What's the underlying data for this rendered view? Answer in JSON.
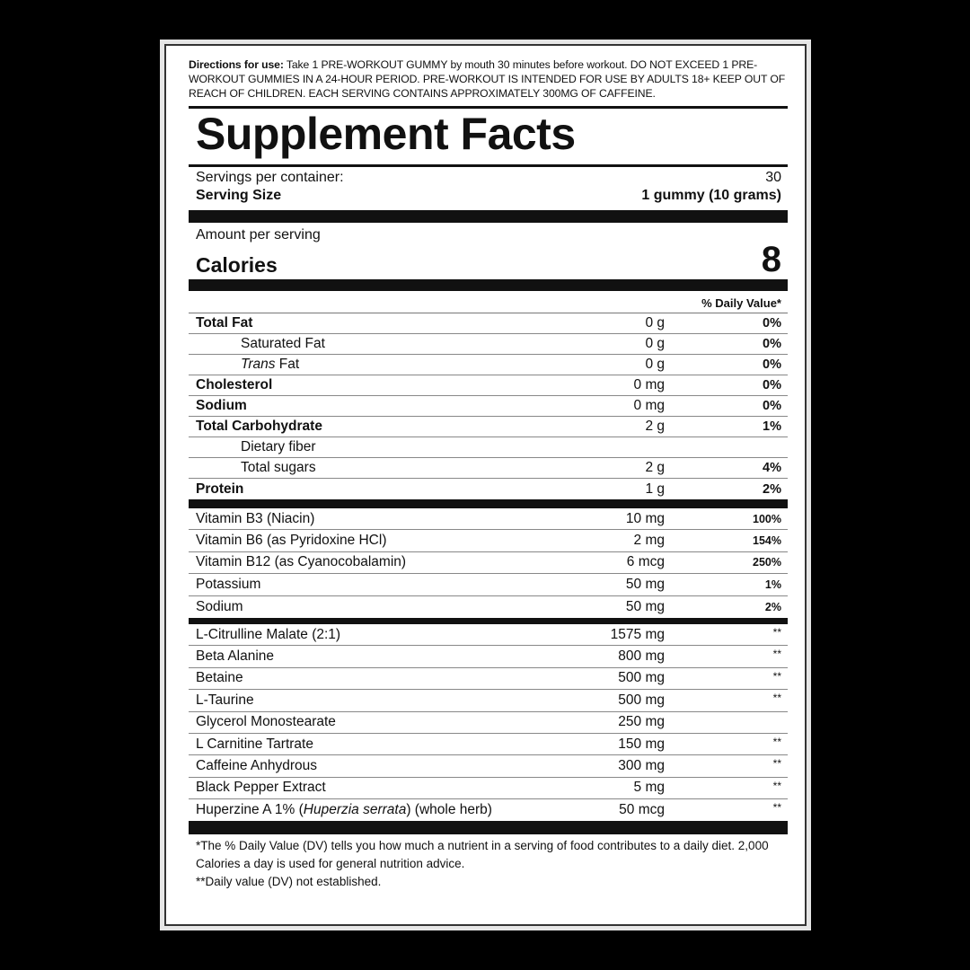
{
  "directions": {
    "label": "Directions for use:",
    "text": " Take 1 PRE-WORKOUT GUMMY by mouth 30 minutes before workout. DO NOT EXCEED 1 PRE-WORKOUT GUMMIES IN A 24-HOUR PERIOD. PRE-WORKOUT IS INTENDED FOR USE BY ADULTS 18+ KEEP OUT OF REACH OF CHILDREN. EACH SERVING CONTAINS APPROXIMATELY 300MG OF CAFFEINE."
  },
  "title": "Supplement Facts",
  "servings": {
    "label": "Servings per container:",
    "value": "30"
  },
  "serving_size": {
    "label": "Serving Size",
    "value": "1 gummy (10 grams)"
  },
  "amount_label": "Amount per serving",
  "calories": {
    "label": "Calories",
    "value": "8"
  },
  "dv_header": "% Daily Value*",
  "nutrients": [
    {
      "name": "Total Fat",
      "amount": "0 g",
      "dv": "0%",
      "bold": true
    },
    {
      "name": "Saturated Fat",
      "amount": "0 g",
      "dv": "0%",
      "sub": true
    },
    {
      "name": "Trans Fat",
      "amount": "0 g",
      "dv": "0%",
      "sub": true
    },
    {
      "name": "Cholesterol",
      "amount": "0 mg",
      "dv": "0%",
      "bold": true
    },
    {
      "name": "Sodium",
      "amount": "0 mg",
      "dv": "0%",
      "bold": true
    },
    {
      "name": "Total Carbohydrate",
      "amount": "2 g",
      "dv": "1%",
      "bold": true
    },
    {
      "name": "Dietary fiber",
      "amount": "",
      "dv": "",
      "sub": true
    },
    {
      "name": "Total sugars",
      "amount": "2 g",
      "dv": "4%",
      "sub": true
    },
    {
      "name": "Protein",
      "amount": "1 g",
      "dv": "2%",
      "bold": true
    }
  ],
  "vitamins": [
    {
      "name": "Vitamin B3 (Niacin)",
      "amount": "10 mg",
      "dv": "100%"
    },
    {
      "name": "Vitamin B6 (as Pyridoxine HCl)",
      "amount": "2 mg",
      "dv": "154%"
    },
    {
      "name": "Vitamin B12 (as Cyanocobalamin)",
      "amount": "6 mcg",
      "dv": "250%"
    },
    {
      "name": "Potassium",
      "amount": "50 mg",
      "dv": "1%"
    },
    {
      "name": "Sodium",
      "amount": "50 mg",
      "dv": "2%"
    }
  ],
  "ingredients": [
    {
      "name": "L-Citrulline Malate (2:1)",
      "amount": "1575 mg",
      "dv": "**"
    },
    {
      "name": "Beta Alanine",
      "amount": "800 mg",
      "dv": "**"
    },
    {
      "name": "Betaine",
      "amount": "500 mg",
      "dv": "**"
    },
    {
      "name": "L-Taurine",
      "amount": "500 mg",
      "dv": "**"
    },
    {
      "name": "Glycerol Monostearate",
      "amount": "250 mg",
      "dv": ""
    },
    {
      "name": "L Carnitine Tartrate",
      "amount": "150 mg",
      "dv": "**"
    },
    {
      "name": "Caffeine Anhydrous",
      "amount": "300 mg",
      "dv": "**"
    },
    {
      "name": "Black Pepper Extract",
      "amount": "5 mg",
      "dv": "**"
    },
    {
      "name": "Huperzine A 1% (",
      "italic": "Huperzia serrata",
      "name_after": ") (whole herb)",
      "amount": "50 mcg",
      "dv": "**"
    }
  ],
  "footer": {
    "note1": "*The % Daily Value (DV) tells you how much a nutrient in a serving of food contributes to a daily diet. 2,000 Calories a day is used for general nutrition advice.",
    "note2": "**Daily value (DV) not established."
  }
}
